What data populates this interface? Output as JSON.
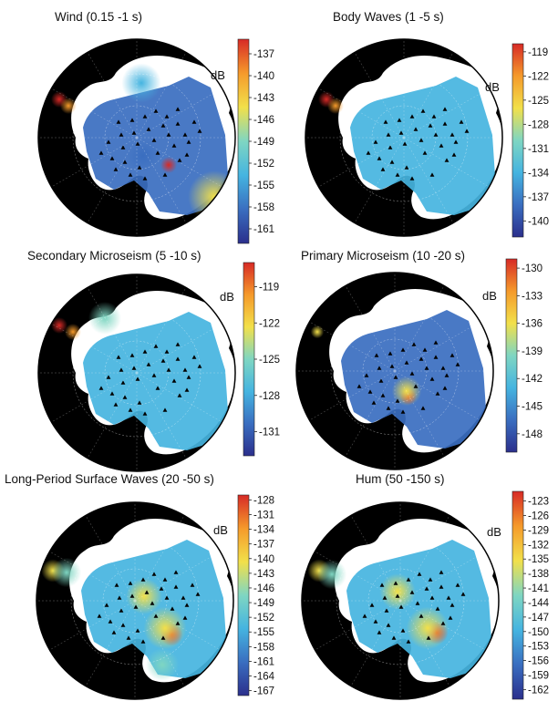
{
  "figure": {
    "panels": [
      {
        "title": "Wind (0.15 -1 s)",
        "unit": "dB",
        "ticks": [
          "-137",
          "-140",
          "-143",
          "-146",
          "-149",
          "-152",
          "-155",
          "-158",
          "-161"
        ],
        "cmin": -163,
        "cmax": -135
      },
      {
        "title": "Body Waves (1 -5 s)",
        "unit": "dB",
        "ticks": [
          "-119",
          "-122",
          "-125",
          "-128",
          "-131",
          "-134",
          "-137",
          "-140"
        ],
        "cmin": -142,
        "cmax": -118
      },
      {
        "title": "Secondary Microseism (5 -10 s)",
        "unit": "dB",
        "ticks": [
          "-119",
          "-122",
          "-125",
          "-128",
          "-131"
        ],
        "cmin": -133,
        "cmax": -117
      },
      {
        "title": "Primary Microseism (10 -20 s)",
        "unit": "dB",
        "ticks": [
          "-130",
          "-133",
          "-136",
          "-139",
          "-142",
          "-145",
          "-148"
        ],
        "cmin": -150,
        "cmax": -129
      },
      {
        "title": "Long-Period Surface Waves (20 -50 s)",
        "unit": "dB",
        "ticks": [
          "-128",
          "-131",
          "-134",
          "-137",
          "-140",
          "-143",
          "-146",
          "-149",
          "-152",
          "-155",
          "-158",
          "-161",
          "-164",
          "-167"
        ],
        "cmin": -168,
        "cmax": -127
      },
      {
        "title": "Hum (50 -150 s)",
        "unit": "dB",
        "ticks": [
          "-123",
          "-126",
          "-129",
          "-132",
          "-135",
          "-138",
          "-141",
          "-144",
          "-147",
          "-150",
          "-153",
          "-156",
          "-159",
          "-162"
        ],
        "cmin": -164,
        "cmax": -121
      }
    ],
    "colors": {
      "background": "#000000",
      "land": "#ffffff",
      "colormap": [
        "#2b2f8c",
        "#3a6ec0",
        "#45b4e0",
        "#7fd6c2",
        "#f2e04a",
        "#f59a2b",
        "#d72a26"
      ]
    }
  }
}
